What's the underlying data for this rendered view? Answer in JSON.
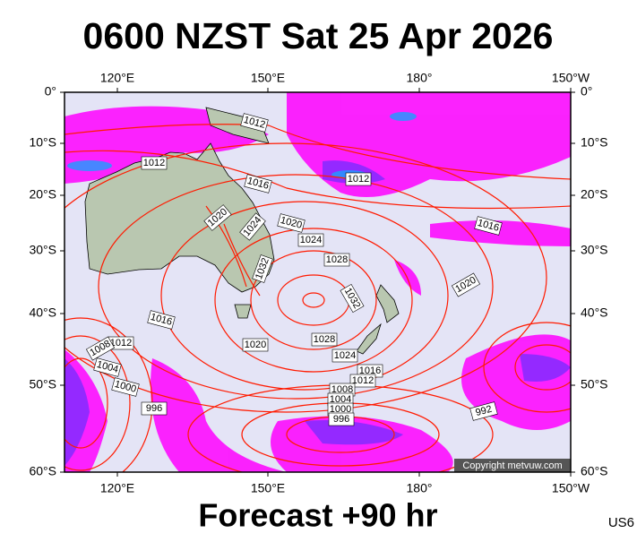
{
  "header": {
    "title": "0600 NZST Sat 25 Apr 2026"
  },
  "footer": {
    "forecast": "Forecast +90 hr",
    "code": "US6"
  },
  "map": {
    "lon_labels": [
      "120°E",
      "150°E",
      "180°",
      "150°W"
    ],
    "lat_labels": [
      "0°",
      "10°S",
      "20°S",
      "30°S",
      "40°S",
      "50°S",
      "60°S"
    ],
    "isobar_labels": [
      "1012",
      "1012",
      "1016",
      "1012",
      "1020",
      "1024",
      "1020",
      "1024",
      "1016",
      "1028",
      "1032",
      "1032",
      "1020",
      "1016",
      "1012",
      "1008",
      "1004",
      "1000",
      "996",
      "1020",
      "1028",
      "1024",
      "1016",
      "1012",
      "1008",
      "1004",
      "1000",
      "996",
      "992"
    ],
    "copyright": "Copyright metvuw.com"
  }
}
